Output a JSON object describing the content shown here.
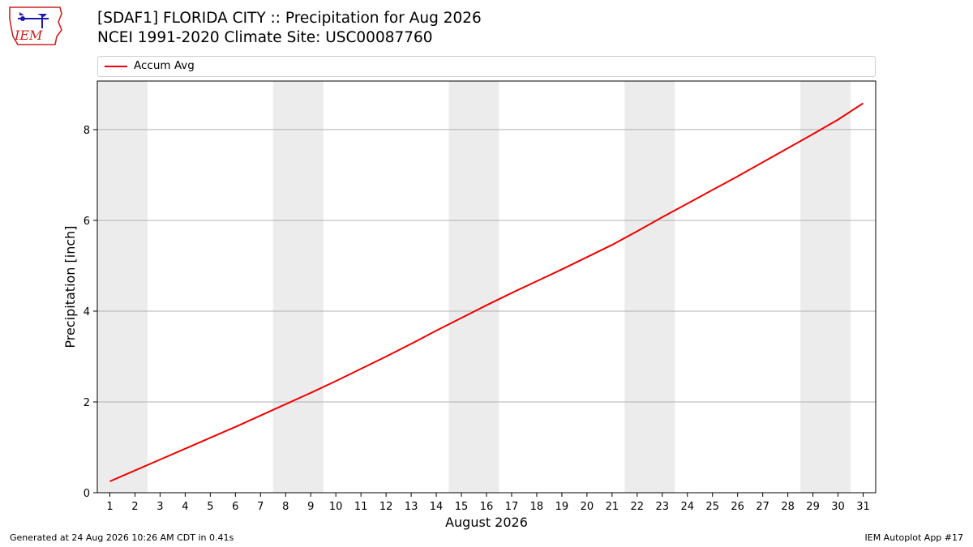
{
  "header": {
    "title_line1": "[SDAF1] FLORIDA CITY :: Precipitation for Aug 2026",
    "title_line2": "NCEI 1991-2020 Climate Site: USC00087760",
    "logo_text": "IEM"
  },
  "footer": {
    "generated": "Generated at 24 Aug 2026 10:26 AM CDT in 0.41s",
    "app": "IEM Autoplot App #17"
  },
  "colors": {
    "line": "#ee0000",
    "weekend_band": "#ececec",
    "grid": "#b0b0b0",
    "logo_red": "#cc2222",
    "logo_blue": "#1a1aa8"
  },
  "chart_data": {
    "type": "line",
    "xlabel": "August 2026",
    "ylabel": "Precipitation [inch]",
    "xlim": [
      0.5,
      31.5
    ],
    "ylim": [
      0,
      9.07
    ],
    "yticks": [
      0,
      2,
      4,
      6,
      8
    ],
    "grid": "horizontal",
    "legend_position": "top",
    "x": [
      1,
      2,
      3,
      4,
      5,
      6,
      7,
      8,
      9,
      10,
      11,
      12,
      13,
      14,
      15,
      16,
      17,
      18,
      19,
      20,
      21,
      22,
      23,
      24,
      25,
      26,
      27,
      28,
      29,
      30,
      31
    ],
    "xtick_labels": [
      "1",
      "2",
      "3",
      "4",
      "5",
      "6",
      "7",
      "8",
      "9",
      "10",
      "11",
      "12",
      "13",
      "14",
      "15",
      "16",
      "17",
      "18",
      "19",
      "20",
      "21",
      "22",
      "23",
      "24",
      "25",
      "26",
      "27",
      "28",
      "29",
      "30",
      "31"
    ],
    "weekend_ranges": [
      [
        1,
        2
      ],
      [
        8,
        9
      ],
      [
        15,
        16
      ],
      [
        22,
        23
      ],
      [
        29,
        30
      ]
    ],
    "series": [
      {
        "name": "Accum Avg",
        "color": "#ee0000",
        "values": [
          0.25,
          0.49,
          0.73,
          0.97,
          1.21,
          1.45,
          1.7,
          1.95,
          2.2,
          2.46,
          2.73,
          3.0,
          3.28,
          3.57,
          3.85,
          4.13,
          4.4,
          4.66,
          4.92,
          5.19,
          5.46,
          5.76,
          6.07,
          6.37,
          6.67,
          6.97,
          7.28,
          7.59,
          7.9,
          8.22,
          8.58
        ]
      }
    ]
  }
}
